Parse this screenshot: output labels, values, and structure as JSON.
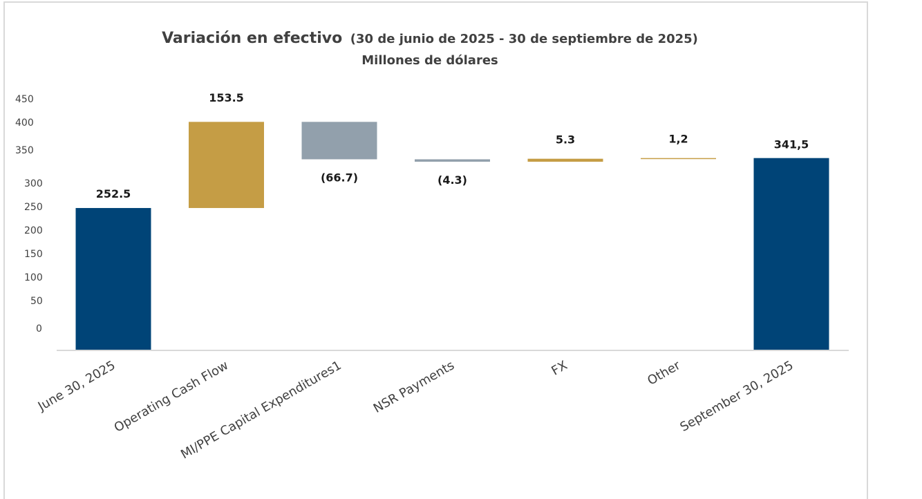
{
  "chart_data": {
    "type": "bar",
    "subtype": "waterfall",
    "title": "Variación en efectivo",
    "title_suffix": "(30 de junio de 2025 - 30 de septiembre de 2025)",
    "subtitle": "Millones de dólares",
    "xlabel": "",
    "ylabel": "",
    "ylim": [
      0,
      450
    ],
    "yticks": [
      "450",
      "400",
      "350",
      "300",
      "250",
      "200",
      "150",
      "100",
      "50",
      "0"
    ],
    "grid": false,
    "legend": "none",
    "categories": [
      "June 30, 2025",
      "Operating Cash Flow",
      "MI/PPE Capital Expenditures1",
      "NSR Payments",
      "FX",
      "Other",
      "September 30, 2025"
    ],
    "values": [
      252.5,
      153.5,
      -66.7,
      -4.3,
      5.3,
      1.2,
      341.5
    ],
    "kinds": [
      "total",
      "increase",
      "decrease",
      "decrease",
      "increase",
      "increase",
      "total"
    ],
    "data_labels": [
      "252.5",
      "153.5",
      "(66.7)",
      "(4.3)",
      "5.3",
      "1,2",
      "341,5"
    ],
    "colors": {
      "total": "#004477",
      "increase": "#C59D45",
      "decrease": "#92A0AC"
    }
  }
}
